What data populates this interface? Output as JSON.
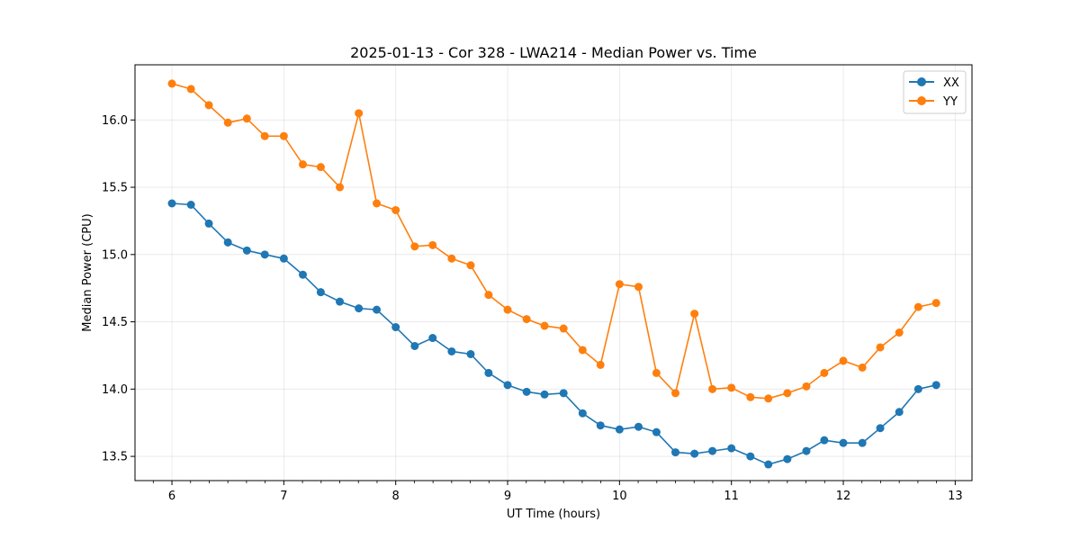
{
  "chart_data": {
    "type": "line",
    "title": "2025-01-13 - Cor 328 - LWA214 - Median Power vs. Time",
    "xlabel": "UT Time (hours)",
    "ylabel": "Median Power (CPU)",
    "xlim": [
      5.67,
      13.15
    ],
    "ylim": [
      13.32,
      16.41
    ],
    "xticks": [
      6,
      7,
      8,
      9,
      10,
      11,
      12,
      13
    ],
    "yticks": [
      13.5,
      14.0,
      14.5,
      15.0,
      15.5,
      16.0
    ],
    "ytick_labels": [
      "13.5",
      "14.0",
      "14.5",
      "15.0",
      "15.5",
      "16.0"
    ],
    "grid": true,
    "legend_position": "top-right",
    "x": [
      6.0,
      6.17,
      6.33,
      6.5,
      6.67,
      6.83,
      7.0,
      7.17,
      7.33,
      7.5,
      7.67,
      7.83,
      8.0,
      8.17,
      8.33,
      8.5,
      8.67,
      8.83,
      9.0,
      9.17,
      9.33,
      9.5,
      9.67,
      9.83,
      10.0,
      10.17,
      10.33,
      10.5,
      10.67,
      10.83,
      11.0,
      11.17,
      11.33,
      11.5,
      11.67,
      11.83,
      12.0,
      12.17,
      12.33,
      12.5,
      12.67,
      12.83
    ],
    "series": [
      {
        "name": "XX",
        "color": "#1f77b4",
        "values": [
          15.38,
          15.37,
          15.23,
          15.09,
          15.03,
          15.0,
          14.97,
          14.85,
          14.72,
          14.65,
          14.6,
          14.59,
          14.46,
          14.32,
          14.38,
          14.28,
          14.26,
          14.12,
          14.03,
          13.98,
          13.96,
          13.97,
          13.82,
          13.73,
          13.7,
          13.72,
          13.68,
          13.53,
          13.52,
          13.54,
          13.56,
          13.5,
          13.44,
          13.48,
          13.54,
          13.62,
          13.6,
          13.6,
          13.71,
          13.83,
          14.0,
          14.03
        ]
      },
      {
        "name": "YY",
        "color": "#ff7f0e",
        "values": [
          16.27,
          16.23,
          16.11,
          15.98,
          16.01,
          15.88,
          15.88,
          15.67,
          15.65,
          15.5,
          16.05,
          15.38,
          15.33,
          15.06,
          15.07,
          14.97,
          14.92,
          14.7,
          14.59,
          14.52,
          14.47,
          14.45,
          14.29,
          14.18,
          14.78,
          14.76,
          14.12,
          13.97,
          14.56,
          14.0,
          14.01,
          13.94,
          13.93,
          13.97,
          14.02,
          14.12,
          14.21,
          14.16,
          14.31,
          14.42,
          14.61,
          14.64
        ]
      }
    ]
  }
}
